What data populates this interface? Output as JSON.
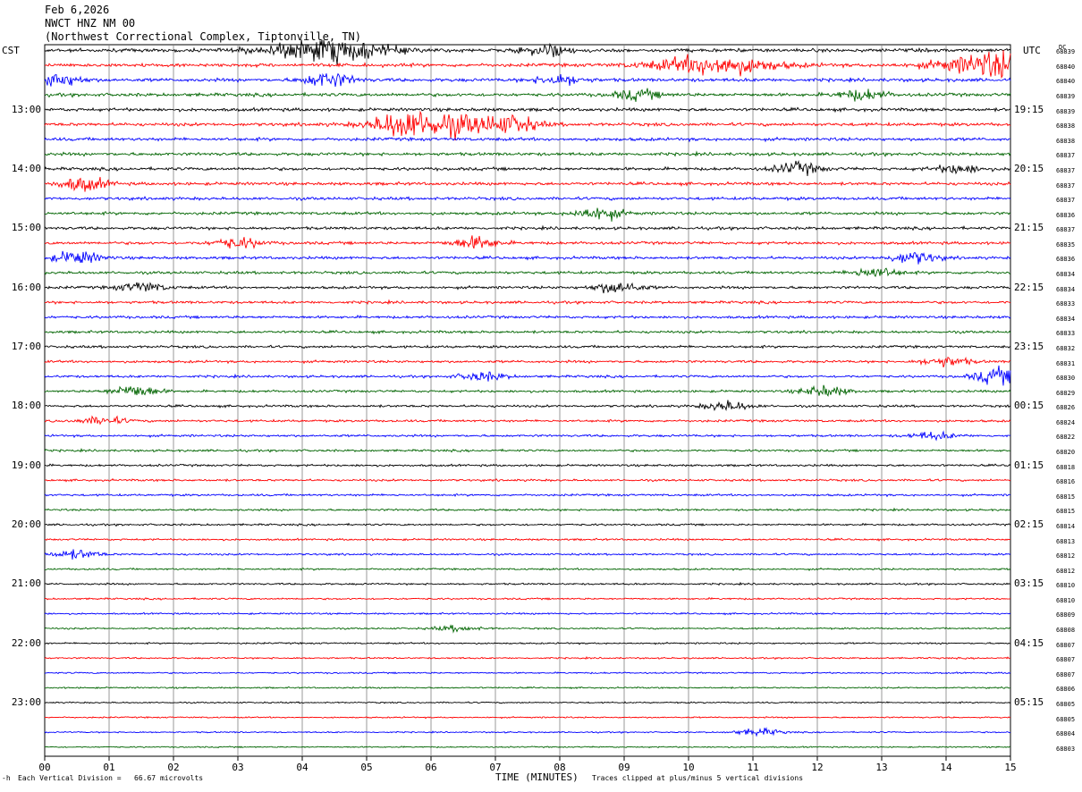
{
  "header": {
    "date": "Feb 6,2026",
    "station": "NWCT HNZ NM 00",
    "location": "(Northwest Correctional Complex, Tiptonville, TN)"
  },
  "left_zone": "CST",
  "right_zone": "UTC",
  "dc_label": "DC",
  "left_times": [
    "13:00",
    "14:00",
    "15:00",
    "16:00",
    "17:00",
    "18:00",
    "19:00",
    "20:00",
    "21:00",
    "22:00",
    "23:00"
  ],
  "right_times": [
    "19:15",
    "20:15",
    "21:15",
    "22:15",
    "23:15",
    "00:15",
    "01:15",
    "02:15",
    "03:15",
    "04:15",
    "05:15"
  ],
  "dc_values": [
    "68839",
    "68840",
    "68840",
    "68839",
    "68839",
    "68838",
    "68838",
    "68837",
    "68837",
    "68837",
    "68837",
    "68836",
    "68837",
    "68835",
    "68836",
    "68834",
    "68834",
    "68833",
    "68834",
    "68833",
    "68832",
    "68831",
    "68830",
    "68829",
    "68826",
    "68824",
    "68822",
    "68820",
    "68818",
    "68816",
    "68815",
    "68815",
    "68814",
    "68813",
    "68812",
    "68812",
    "68810",
    "68810",
    "68809",
    "68808",
    "68807",
    "68807",
    "68807",
    "68806",
    "68805",
    "68805",
    "68804",
    "68803"
  ],
  "footer": {
    "scale_text": "Each Vertical Division =   66.67 microvolts",
    "xlabel": "TIME (MINUTES)",
    "clip_text": "Traces clipped at plus/minus 5 vertical divisions",
    "corner_mark": "-h"
  },
  "colors": {
    "trace_cycle": [
      "#000000",
      "#ff0000",
      "#0000ff",
      "#006400"
    ],
    "grid": "#808080"
  },
  "chart_data": {
    "type": "line",
    "xlabel": "TIME (MINUTES)",
    "xlim": [
      0,
      15
    ],
    "x_ticks": [
      "00",
      "01",
      "02",
      "03",
      "04",
      "05",
      "06",
      "07",
      "08",
      "09",
      "10",
      "11",
      "12",
      "13",
      "14",
      "15"
    ],
    "trace_count": 48,
    "trace_minutes": 15,
    "traces_per_hour": 4,
    "first_trace_start": "12:00",
    "events": [
      {
        "trace": 0,
        "minute": 4.4,
        "amp": 2.5
      },
      {
        "trace": 0,
        "minute": 7.8,
        "amp": 1.3
      },
      {
        "trace": 1,
        "minute": 10.4,
        "amp": 2.2
      },
      {
        "trace": 1,
        "minute": 14.9,
        "amp": 3.0
      },
      {
        "trace": 2,
        "minute": 0.2,
        "amp": 1.6
      },
      {
        "trace": 2,
        "minute": 4.4,
        "amp": 1.8
      },
      {
        "trace": 2,
        "minute": 8.0,
        "amp": 1.2
      },
      {
        "trace": 3,
        "minute": 9.2,
        "amp": 1.1
      },
      {
        "trace": 3,
        "minute": 12.7,
        "amp": 1.2
      },
      {
        "trace": 5,
        "minute": 6.2,
        "amp": 2.6
      },
      {
        "trace": 5,
        "minute": 5.5,
        "amp": 1.8
      },
      {
        "trace": 5,
        "minute": 7.3,
        "amp": 1.5
      },
      {
        "trace": 8,
        "minute": 11.7,
        "amp": 1.3
      },
      {
        "trace": 8,
        "minute": 14.2,
        "amp": 1.0
      },
      {
        "trace": 9,
        "minute": 0.6,
        "amp": 1.6
      },
      {
        "trace": 11,
        "minute": 8.6,
        "amp": 1.5
      },
      {
        "trace": 13,
        "minute": 6.7,
        "amp": 1.4
      },
      {
        "trace": 13,
        "minute": 3.0,
        "amp": 1.2
      },
      {
        "trace": 14,
        "minute": 0.5,
        "amp": 1.5
      },
      {
        "trace": 14,
        "minute": 13.5,
        "amp": 1.4
      },
      {
        "trace": 15,
        "minute": 12.9,
        "amp": 1.2
      },
      {
        "trace": 16,
        "minute": 8.9,
        "amp": 1.4
      },
      {
        "trace": 16,
        "minute": 1.5,
        "amp": 1.1
      },
      {
        "trace": 21,
        "minute": 14.0,
        "amp": 1.1
      },
      {
        "trace": 22,
        "minute": 14.8,
        "amp": 1.8
      },
      {
        "trace": 22,
        "minute": 6.8,
        "amp": 1.0
      },
      {
        "trace": 23,
        "minute": 1.4,
        "amp": 1.4
      },
      {
        "trace": 23,
        "minute": 12.1,
        "amp": 1.2
      },
      {
        "trace": 24,
        "minute": 10.6,
        "amp": 1.1
      },
      {
        "trace": 25,
        "minute": 0.9,
        "amp": 0.9
      },
      {
        "trace": 26,
        "minute": 13.8,
        "amp": 0.8
      },
      {
        "trace": 34,
        "minute": 0.5,
        "amp": 1.0
      },
      {
        "trace": 39,
        "minute": 6.4,
        "amp": 0.6
      },
      {
        "trace": 46,
        "minute": 11.1,
        "amp": 0.8
      }
    ]
  }
}
